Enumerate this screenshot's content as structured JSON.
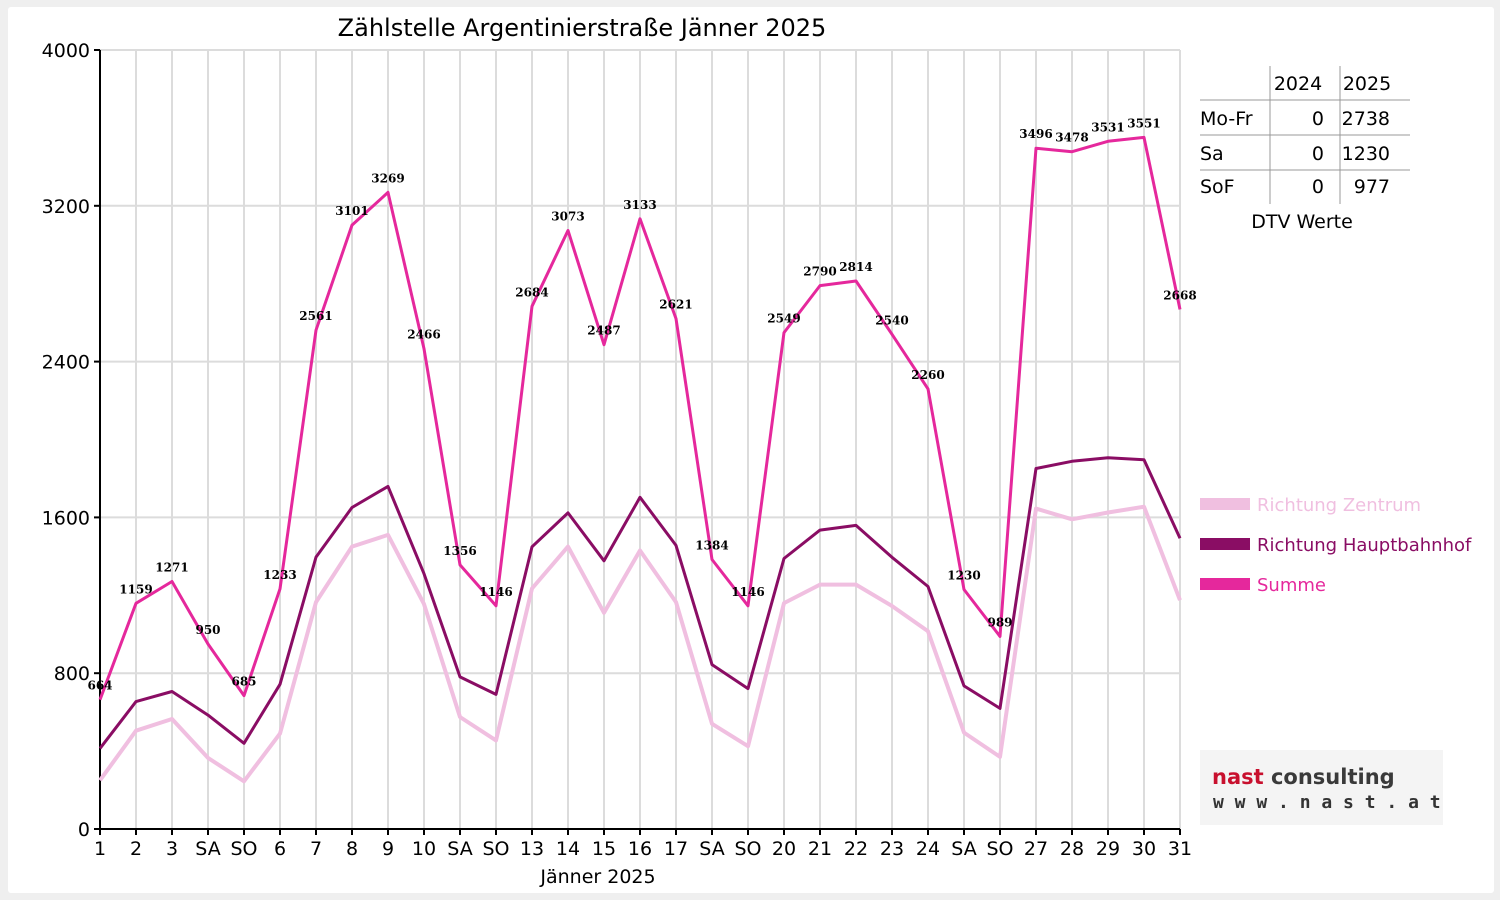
{
  "chart_data": {
    "type": "line",
    "title": "Zählstelle Argentinierstraße Jänner 2025",
    "xlabel": "Jänner 2025",
    "ylabel": "",
    "ylim": [
      0,
      4000
    ],
    "yticks": [
      0,
      800,
      1600,
      2400,
      3200,
      4000
    ],
    "grid": true,
    "legend_position": "right",
    "categories": [
      "1",
      "2",
      "3",
      "SA",
      "SO",
      "6",
      "7",
      "8",
      "9",
      "10",
      "SA",
      "SO",
      "13",
      "14",
      "15",
      "16",
      "17",
      "SA",
      "SO",
      "20",
      "21",
      "22",
      "23",
      "24",
      "SA",
      "SO",
      "27",
      "28",
      "29",
      "30",
      "31"
    ],
    "red_categories": [
      0,
      4,
      5,
      11,
      18,
      25
    ],
    "series": [
      {
        "name": "Richtung Zentrum",
        "color": "#f0bfe0",
        "values": [
          250,
          505,
          565,
          365,
          245,
          490,
          1165,
          1450,
          1510,
          1155,
          575,
          455,
          1235,
          1450,
          1110,
          1430,
          1165,
          540,
          425,
          1160,
          1255,
          1255,
          1145,
          1015,
          495,
          370,
          1645,
          1590,
          1625,
          1655,
          1175
        ]
      },
      {
        "name": "Richtung Hauptbahnhof",
        "color": "#8a0d64",
        "values": [
          414,
          654,
          706,
          585,
          440,
          743,
          1396,
          1651,
          1759,
          1311,
          781,
          691,
          1449,
          1623,
          1377,
          1703,
          1456,
          844,
          721,
          1389,
          1535,
          1559,
          1395,
          1245,
          735,
          619,
          1851,
          1888,
          1906,
          1896,
          1493
        ]
      },
      {
        "name": "Summe",
        "color": "#e5289c",
        "values": [
          664,
          1159,
          1271,
          950,
          685,
          1233,
          2561,
          3101,
          3269,
          2466,
          1356,
          1146,
          2684,
          3073,
          2487,
          3133,
          2621,
          1384,
          1146,
          2549,
          2790,
          2814,
          2540,
          2260,
          1230,
          989,
          3496,
          3478,
          3531,
          3551,
          2668
        ]
      }
    ],
    "data_labels": [
      "664",
      "1159",
      "1271",
      "950",
      "685",
      "1233",
      "2561",
      "3101",
      "3269",
      "2466",
      "1356",
      "1146",
      "2684",
      "3073",
      "2487",
      "3133",
      "2621",
      "1384",
      "1146",
      "2549",
      "2790",
      "2814",
      "2540",
      "2260",
      "1230",
      "989",
      "3496",
      "3478",
      "3531",
      "3551",
      "2668"
    ]
  },
  "dtv_table": {
    "caption": "DTV Werte",
    "headers": [
      "",
      "2024",
      "2025"
    ],
    "rows": [
      {
        "label": "Mo-Fr",
        "v2024": "0",
        "v2025": "2738"
      },
      {
        "label": "Sa",
        "v2024": "0",
        "v2025": "1230"
      },
      {
        "label": "SoF",
        "v2024": "0",
        "v2025": "977"
      }
    ]
  },
  "logo": {
    "main_left": "nast",
    "main_right": "consulting",
    "sub": "w w w . n a s t . a t",
    "color_left": "#c8102e",
    "color_right": "#3a3a3a"
  },
  "colors": {
    "frame": "#efefef",
    "grid": "#dcdcdc",
    "axis": "#000000",
    "red_label": "#ff0000"
  }
}
